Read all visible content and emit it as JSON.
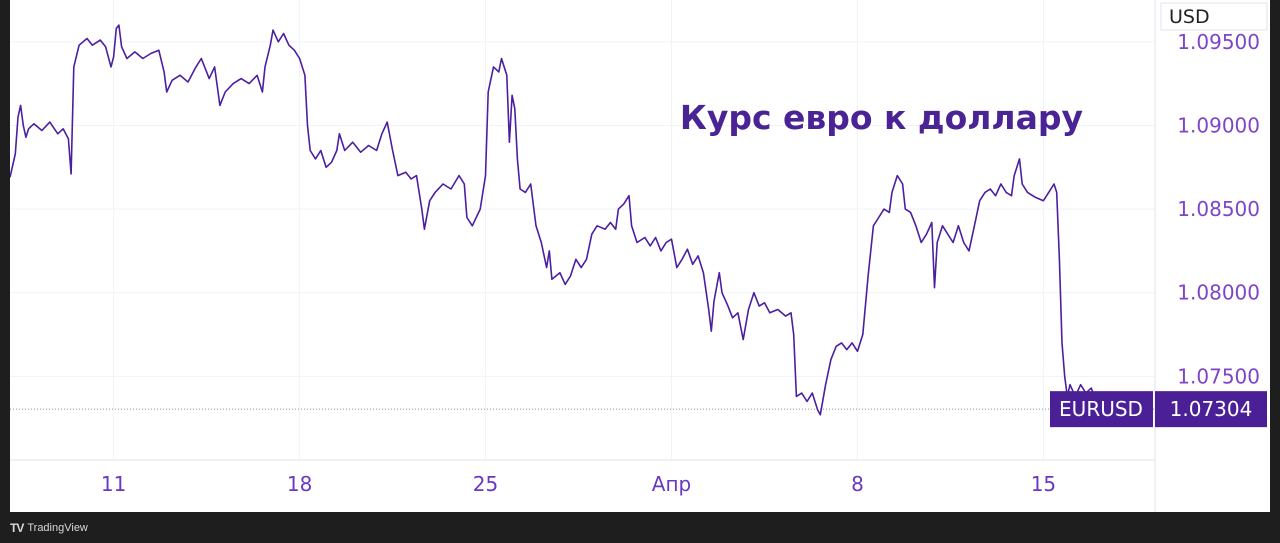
{
  "chart_data": {
    "type": "line",
    "title": "Курс евро к доллару",
    "currency": "USD",
    "symbol": "EURUSD",
    "last_value": "1.07304",
    "y_ticks": [
      "1.09500",
      "1.09000",
      "1.08500",
      "1.08000",
      "1.07500"
    ],
    "y_tick_values": [
      1.095,
      1.09,
      1.085,
      1.08,
      1.075
    ],
    "x_ticks": [
      "11",
      "18",
      "25",
      "Апр",
      "8",
      "15"
    ],
    "x_tick_positions": [
      11,
      18,
      25,
      32,
      39,
      46
    ],
    "ylim": [
      1.07,
      1.0975
    ],
    "xlim": [
      7.1,
      50.2
    ],
    "grid": true,
    "line_color": "#4b1fa0",
    "series": [
      {
        "values": [
          [
            7.1,
            1.0869
          ],
          [
            7.3,
            1.0883
          ],
          [
            7.4,
            1.0905
          ],
          [
            7.5,
            1.0912
          ],
          [
            7.6,
            1.09
          ],
          [
            7.7,
            1.0893
          ],
          [
            7.8,
            1.0898
          ],
          [
            8.0,
            1.0901
          ],
          [
            8.3,
            1.0897
          ],
          [
            8.6,
            1.0902
          ],
          [
            8.9,
            1.0895
          ],
          [
            9.1,
            1.0898
          ],
          [
            9.3,
            1.0892
          ],
          [
            9.4,
            1.0871
          ],
          [
            9.5,
            1.0935
          ],
          [
            9.7,
            1.0948
          ],
          [
            10.0,
            1.0952
          ],
          [
            10.2,
            1.0948
          ],
          [
            10.5,
            1.0951
          ],
          [
            10.7,
            1.0947
          ],
          [
            10.9,
            1.0935
          ],
          [
            11.0,
            1.0941
          ],
          [
            11.1,
            1.0958
          ],
          [
            11.2,
            1.096
          ],
          [
            11.3,
            1.0947
          ],
          [
            11.5,
            1.094
          ],
          [
            11.8,
            1.0944
          ],
          [
            12.1,
            1.094
          ],
          [
            12.4,
            1.0943
          ],
          [
            12.7,
            1.0945
          ],
          [
            12.9,
            1.0932
          ],
          [
            13.0,
            1.092
          ],
          [
            13.2,
            1.0927
          ],
          [
            13.5,
            1.093
          ],
          [
            13.8,
            1.0926
          ],
          [
            14.1,
            1.0935
          ],
          [
            14.3,
            1.094
          ],
          [
            14.5,
            1.0932
          ],
          [
            14.6,
            1.0928
          ],
          [
            14.8,
            1.0935
          ],
          [
            15.0,
            1.0912
          ],
          [
            15.2,
            1.092
          ],
          [
            15.5,
            1.0925
          ],
          [
            15.8,
            1.0928
          ],
          [
            16.1,
            1.0925
          ],
          [
            16.4,
            1.093
          ],
          [
            16.6,
            1.092
          ],
          [
            16.7,
            1.0935
          ],
          [
            16.9,
            1.0948
          ],
          [
            17.0,
            1.0957
          ],
          [
            17.2,
            1.095
          ],
          [
            17.4,
            1.0955
          ],
          [
            17.6,
            1.0948
          ],
          [
            17.8,
            1.0945
          ],
          [
            18.0,
            1.094
          ],
          [
            18.2,
            1.093
          ],
          [
            18.3,
            1.09
          ],
          [
            18.4,
            1.0885
          ],
          [
            18.6,
            1.088
          ],
          [
            18.8,
            1.0885
          ],
          [
            19.0,
            1.0875
          ],
          [
            19.2,
            1.0878
          ],
          [
            19.4,
            1.0885
          ],
          [
            19.5,
            1.0895
          ],
          [
            19.7,
            1.0885
          ],
          [
            20.0,
            1.089
          ],
          [
            20.3,
            1.0884
          ],
          [
            20.6,
            1.0888
          ],
          [
            20.9,
            1.0885
          ],
          [
            21.1,
            1.0895
          ],
          [
            21.3,
            1.0902
          ],
          [
            21.5,
            1.0885
          ],
          [
            21.7,
            1.087
          ],
          [
            22.0,
            1.0872
          ],
          [
            22.2,
            1.0868
          ],
          [
            22.4,
            1.087
          ],
          [
            22.6,
            1.085
          ],
          [
            22.7,
            1.0838
          ],
          [
            22.9,
            1.0855
          ],
          [
            23.1,
            1.086
          ],
          [
            23.4,
            1.0865
          ],
          [
            23.7,
            1.0862
          ],
          [
            24.0,
            1.087
          ],
          [
            24.2,
            1.0865
          ],
          [
            24.3,
            1.0845
          ],
          [
            24.5,
            1.084
          ],
          [
            24.8,
            1.085
          ],
          [
            25.0,
            1.087
          ],
          [
            25.1,
            1.092
          ],
          [
            25.3,
            1.0935
          ],
          [
            25.5,
            1.0932
          ],
          [
            25.6,
            1.094
          ],
          [
            25.8,
            1.093
          ],
          [
            25.9,
            1.089
          ],
          [
            26.0,
            1.0918
          ],
          [
            26.1,
            1.091
          ],
          [
            26.2,
            1.088
          ],
          [
            26.3,
            1.0862
          ],
          [
            26.5,
            1.086
          ],
          [
            26.7,
            1.0865
          ],
          [
            26.9,
            1.084
          ],
          [
            27.1,
            1.083
          ],
          [
            27.3,
            1.0815
          ],
          [
            27.4,
            1.0825
          ],
          [
            27.5,
            1.0808
          ],
          [
            27.8,
            1.0812
          ],
          [
            28.0,
            1.0805
          ],
          [
            28.2,
            1.081
          ],
          [
            28.4,
            1.082
          ],
          [
            28.6,
            1.0815
          ],
          [
            28.8,
            1.082
          ],
          [
            29.0,
            1.0835
          ],
          [
            29.2,
            1.084
          ],
          [
            29.5,
            1.0838
          ],
          [
            29.7,
            1.0842
          ],
          [
            29.9,
            1.0838
          ],
          [
            30.0,
            1.085
          ],
          [
            30.2,
            1.0853
          ],
          [
            30.4,
            1.0858
          ],
          [
            30.5,
            1.084
          ],
          [
            30.7,
            1.083
          ],
          [
            31.0,
            1.0833
          ],
          [
            31.2,
            1.0828
          ],
          [
            31.4,
            1.0833
          ],
          [
            31.6,
            1.0825
          ],
          [
            31.8,
            1.083
          ],
          [
            32.0,
            1.0832
          ],
          [
            32.2,
            1.0815
          ],
          [
            32.4,
            1.082
          ],
          [
            32.6,
            1.0826
          ],
          [
            32.8,
            1.0817
          ],
          [
            33.0,
            1.0822
          ],
          [
            33.2,
            1.0812
          ],
          [
            33.4,
            1.079
          ],
          [
            33.5,
            1.0777
          ],
          [
            33.6,
            1.0795
          ],
          [
            33.8,
            1.0812
          ],
          [
            33.9,
            1.08
          ],
          [
            34.1,
            1.0793
          ],
          [
            34.3,
            1.0785
          ],
          [
            34.5,
            1.0788
          ],
          [
            34.7,
            1.0772
          ],
          [
            34.9,
            1.079
          ],
          [
            35.1,
            1.08
          ],
          [
            35.3,
            1.0792
          ],
          [
            35.5,
            1.0794
          ],
          [
            35.7,
            1.0788
          ],
          [
            36.0,
            1.079
          ],
          [
            36.3,
            1.0786
          ],
          [
            36.5,
            1.0788
          ],
          [
            36.6,
            1.0775
          ],
          [
            36.7,
            1.0738
          ],
          [
            36.9,
            1.074
          ],
          [
            37.1,
            1.0735
          ],
          [
            37.3,
            1.074
          ],
          [
            37.5,
            1.073
          ],
          [
            37.6,
            1.0727
          ],
          [
            37.8,
            1.0745
          ],
          [
            38.0,
            1.076
          ],
          [
            38.2,
            1.0768
          ],
          [
            38.4,
            1.077
          ],
          [
            38.6,
            1.0766
          ],
          [
            38.8,
            1.077
          ],
          [
            39.0,
            1.0765
          ],
          [
            39.2,
            1.0775
          ],
          [
            39.4,
            1.081
          ],
          [
            39.6,
            1.084
          ],
          [
            39.8,
            1.0845
          ],
          [
            40.0,
            1.085
          ],
          [
            40.2,
            1.0848
          ],
          [
            40.3,
            1.086
          ],
          [
            40.5,
            1.087
          ],
          [
            40.7,
            1.0865
          ],
          [
            40.8,
            1.085
          ],
          [
            41.0,
            1.0848
          ],
          [
            41.2,
            1.084
          ],
          [
            41.4,
            1.083
          ],
          [
            41.6,
            1.0835
          ],
          [
            41.8,
            1.0842
          ],
          [
            41.9,
            1.0803
          ],
          [
            42.0,
            1.083
          ],
          [
            42.2,
            1.084
          ],
          [
            42.4,
            1.0835
          ],
          [
            42.6,
            1.083
          ],
          [
            42.8,
            1.084
          ],
          [
            43.0,
            1.083
          ],
          [
            43.2,
            1.0825
          ],
          [
            43.4,
            1.084
          ],
          [
            43.6,
            1.0855
          ],
          [
            43.8,
            1.086
          ],
          [
            44.0,
            1.0862
          ],
          [
            44.2,
            1.0858
          ],
          [
            44.4,
            1.0865
          ],
          [
            44.6,
            1.086
          ],
          [
            44.8,
            1.0858
          ],
          [
            44.9,
            1.087
          ],
          [
            45.1,
            1.088
          ],
          [
            45.2,
            1.0865
          ],
          [
            45.4,
            1.086
          ],
          [
            45.7,
            1.0857
          ],
          [
            46.0,
            1.0855
          ],
          [
            46.2,
            1.086
          ],
          [
            46.4,
            1.0865
          ],
          [
            46.5,
            1.086
          ],
          [
            46.6,
            1.082
          ],
          [
            46.7,
            1.077
          ],
          [
            46.8,
            1.075
          ],
          [
            46.9,
            1.0738
          ],
          [
            47.0,
            1.0745
          ],
          [
            47.2,
            1.0738
          ],
          [
            47.4,
            1.0745
          ],
          [
            47.6,
            1.074
          ],
          [
            47.8,
            1.0743
          ],
          [
            48.0,
            1.0735
          ],
          [
            48.1,
            1.0728
          ],
          [
            48.3,
            1.0732
          ],
          [
            48.5,
            1.073
          ]
        ]
      }
    ]
  },
  "footer": {
    "brand": "TradingView",
    "logo": "TV"
  }
}
